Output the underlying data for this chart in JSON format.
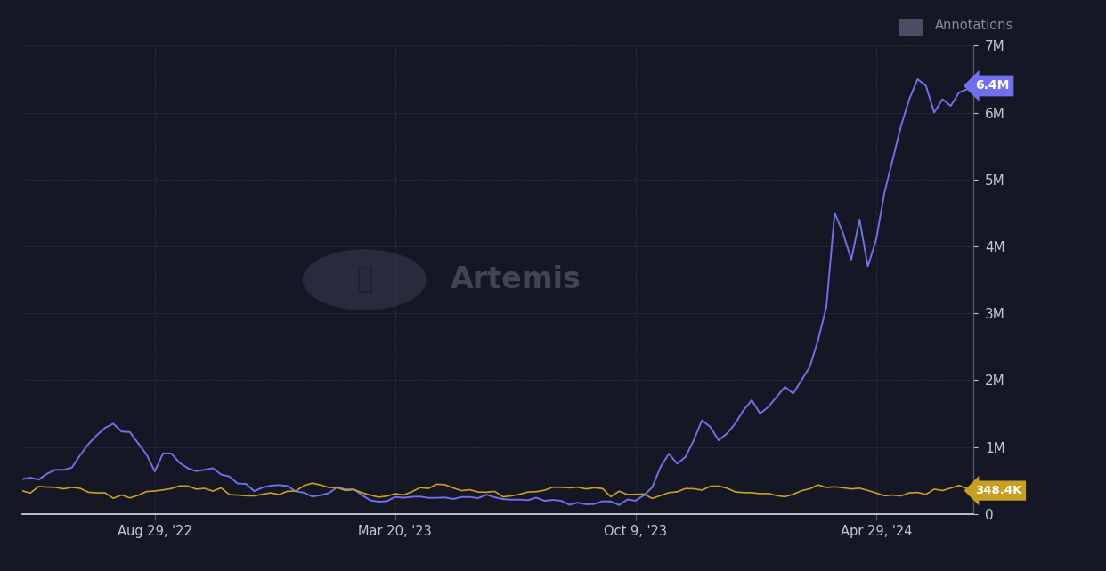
{
  "background_color": "#151724",
  "plot_bg_color": "#151724",
  "grid_color": "#2a2d3e",
  "line_color_solana": "#7070ee",
  "line_color_ethereum": "#c8a020",
  "annotations_legend": "Annotations",
  "annotations_square_color": "#4a4a6a",
  "x_tick_labels": [
    "Aug 29, '22",
    "Mar 20, '23",
    "Oct 9, '23",
    "Apr 29, '24"
  ],
  "y_tick_labels": [
    "0",
    "1M",
    "2M",
    "3M",
    "4M",
    "5M",
    "6M",
    "7M"
  ],
  "ylim": [
    0,
    7000000
  ],
  "text_color": "#c0c8d8",
  "tick_color": "#888888",
  "sol_label": "6.4M",
  "eth_label": "348.4K",
  "sol_badge_color": "#7070ee",
  "eth_badge_color": "#c8a020"
}
